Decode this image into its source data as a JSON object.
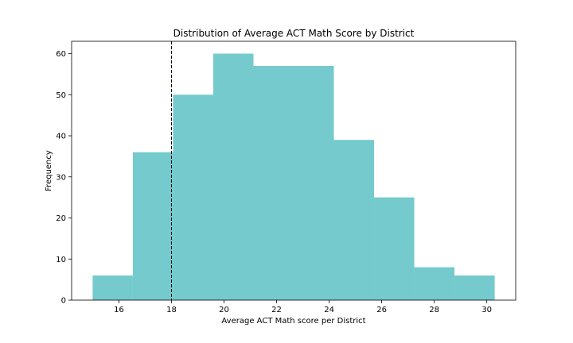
{
  "chart_data": {
    "type": "bar",
    "subtype": "histogram",
    "title": "Distribution of Average ACT Math Score by District",
    "xlabel": "Average ACT Math score per District",
    "ylabel": "Frequency",
    "bins": [
      {
        "x0": 15.0,
        "x1": 16.53,
        "count": 6
      },
      {
        "x0": 16.53,
        "x1": 18.06,
        "count": 36
      },
      {
        "x0": 18.06,
        "x1": 19.59,
        "count": 50
      },
      {
        "x0": 19.59,
        "x1": 21.12,
        "count": 60
      },
      {
        "x0": 21.12,
        "x1": 22.65,
        "count": 57
      },
      {
        "x0": 22.65,
        "x1": 24.18,
        "count": 57
      },
      {
        "x0": 24.18,
        "x1": 25.71,
        "count": 39
      },
      {
        "x0": 25.71,
        "x1": 27.24,
        "count": 25
      },
      {
        "x0": 27.24,
        "x1": 28.77,
        "count": 8
      },
      {
        "x0": 28.77,
        "x1": 30.3,
        "count": 6
      }
    ],
    "xlim": [
      14.2,
      31.1
    ],
    "ylim": [
      0,
      63
    ],
    "xticks": [
      16,
      18,
      20,
      22,
      24,
      26,
      28,
      30
    ],
    "yticks": [
      0,
      10,
      20,
      30,
      40,
      50,
      60
    ],
    "reference_line": {
      "x": 18,
      "style": "dashed",
      "color": "#000000"
    },
    "bar_color": "#74cacd",
    "grid": false,
    "legend": "none"
  }
}
